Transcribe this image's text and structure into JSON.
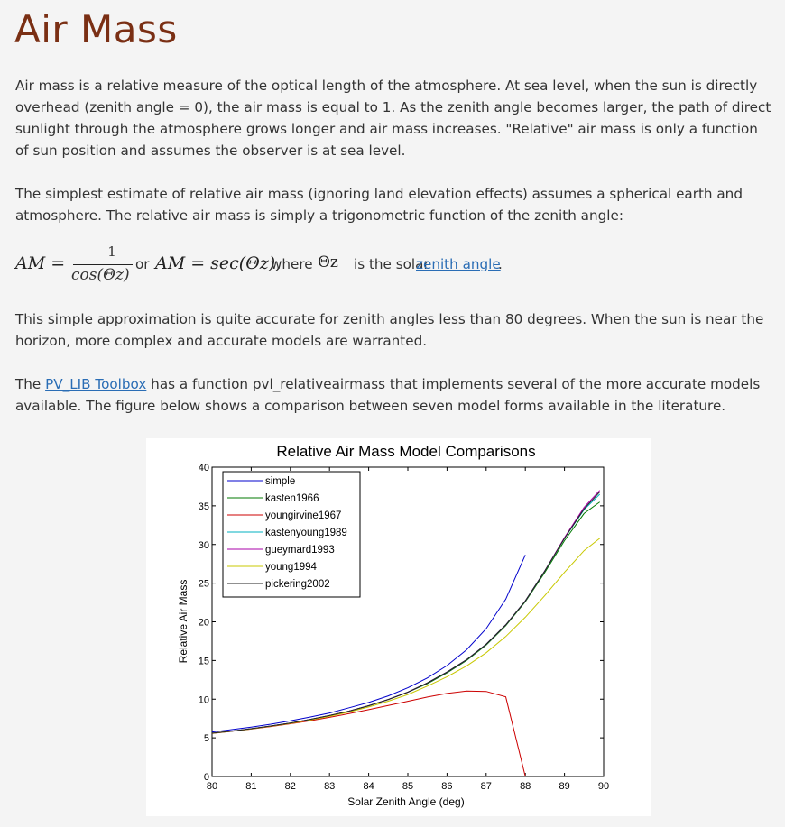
{
  "page": {
    "title": "Air Mass",
    "p1": "Air mass is a relative measure of the optical length of the atmosphere.  At sea level, when the sun is directly overhead (zenith angle = 0),  the air mass is equal to 1.  As the zenith angle becomes larger, the path of direct sunlight through the atmosphere grows longer and air mass increases. \"Relative\" air mass is only a function of sun position and assumes the observer is at sea level.",
    "p2": "The simplest estimate of relative air mass (ignoring land elevation effects) assumes a spherical earth and atmosphere.  The relative air mass is simply a trigonometric function of the zenith angle:",
    "eq_lhs": "AM =",
    "eq_num": "1",
    "eq_den": "cos(Θz)",
    "eq_or": "or",
    "eq_rhs": "AM = sec(Θz),",
    "eq_where": "where",
    "eq_theta": "Θz",
    "eq_is_the_solar": "is the solar",
    "eq_link": "zenith angle",
    "eq_period": ".",
    "p3": "This simple approximation is quite accurate for zenith angles less than 80 degrees.  When the sun is near the horizon, more complex and accurate models are warranted.",
    "p4_prefix": "The ",
    "p4_link": "PV_LIB Toolbox",
    "p4_suffix": " has a function pvl_relativeairmass that implements several of the more accurate models available.  The figure below shows a comparison between seven model forms available in the literature."
  },
  "chart_data": {
    "type": "line",
    "title": "Relative Air Mass Model Comparisons",
    "xlabel": "Solar Zenith Angle (deg)",
    "ylabel": "Relative Air Mass",
    "xlim": [
      80,
      90
    ],
    "ylim": [
      0,
      40
    ],
    "xticks": [
      80,
      81,
      82,
      83,
      84,
      85,
      86,
      87,
      88,
      89,
      90
    ],
    "yticks": [
      0,
      5,
      10,
      15,
      20,
      25,
      30,
      35,
      40
    ],
    "grid": false,
    "legend_position": "top-left",
    "x": [
      80,
      80.5,
      81,
      81.5,
      82,
      82.5,
      83,
      83.5,
      84,
      84.5,
      85,
      85.5,
      86,
      86.5,
      87,
      87.5,
      88,
      88.5,
      89,
      89.5,
      89.9
    ],
    "series": [
      {
        "name": "simple",
        "color": "#0000cc",
        "values": [
          5.76,
          6.06,
          6.39,
          6.76,
          7.19,
          7.68,
          8.21,
          8.89,
          9.57,
          10.43,
          11.47,
          12.75,
          14.34,
          16.38,
          19.11,
          22.93,
          28.65,
          null,
          null,
          null,
          null
        ]
      },
      {
        "name": "kasten1966",
        "color": "#007a00",
        "values": [
          5.6,
          5.87,
          6.18,
          6.53,
          6.92,
          7.36,
          7.87,
          8.45,
          9.14,
          9.95,
          10.9,
          12.0,
          13.4,
          15.0,
          17.0,
          19.5,
          22.6,
          26.4,
          30.5,
          34.0,
          35.5
        ]
      },
      {
        "name": "youngirvine1967",
        "color": "#cc0000",
        "values": [
          5.57,
          5.84,
          6.13,
          6.46,
          6.82,
          7.21,
          7.65,
          8.13,
          8.64,
          9.18,
          9.73,
          10.27,
          10.74,
          11.05,
          11.0,
          10.3,
          0,
          null,
          null,
          null,
          null
        ]
      },
      {
        "name": "kastenyoung1989",
        "color": "#00b0c0",
        "values": [
          5.6,
          5.87,
          6.18,
          6.53,
          6.92,
          7.37,
          7.88,
          8.46,
          9.15,
          9.96,
          10.9,
          12.1,
          13.5,
          15.1,
          17.1,
          19.6,
          22.7,
          26.6,
          30.8,
          34.5,
          36.5
        ]
      },
      {
        "name": "gueymard1993",
        "color": "#aa00aa",
        "values": [
          5.6,
          5.87,
          6.18,
          6.53,
          6.92,
          7.37,
          7.88,
          8.46,
          9.15,
          9.96,
          10.9,
          12.1,
          13.5,
          15.1,
          17.1,
          19.6,
          22.7,
          26.6,
          30.9,
          34.8,
          37.0
        ]
      },
      {
        "name": "young1994",
        "color": "#c8c800",
        "values": [
          5.59,
          5.85,
          6.15,
          6.49,
          6.87,
          7.3,
          7.79,
          8.34,
          8.99,
          9.74,
          10.6,
          11.7,
          12.9,
          14.3,
          16.0,
          18.1,
          20.6,
          23.4,
          26.4,
          29.2,
          30.8
        ]
      },
      {
        "name": "pickering2002",
        "color": "#222222",
        "values": [
          5.6,
          5.87,
          6.18,
          6.53,
          6.92,
          7.37,
          7.88,
          8.46,
          9.15,
          9.96,
          10.9,
          12.1,
          13.5,
          15.1,
          17.1,
          19.6,
          22.7,
          26.6,
          30.8,
          34.6,
          36.8
        ]
      }
    ]
  }
}
